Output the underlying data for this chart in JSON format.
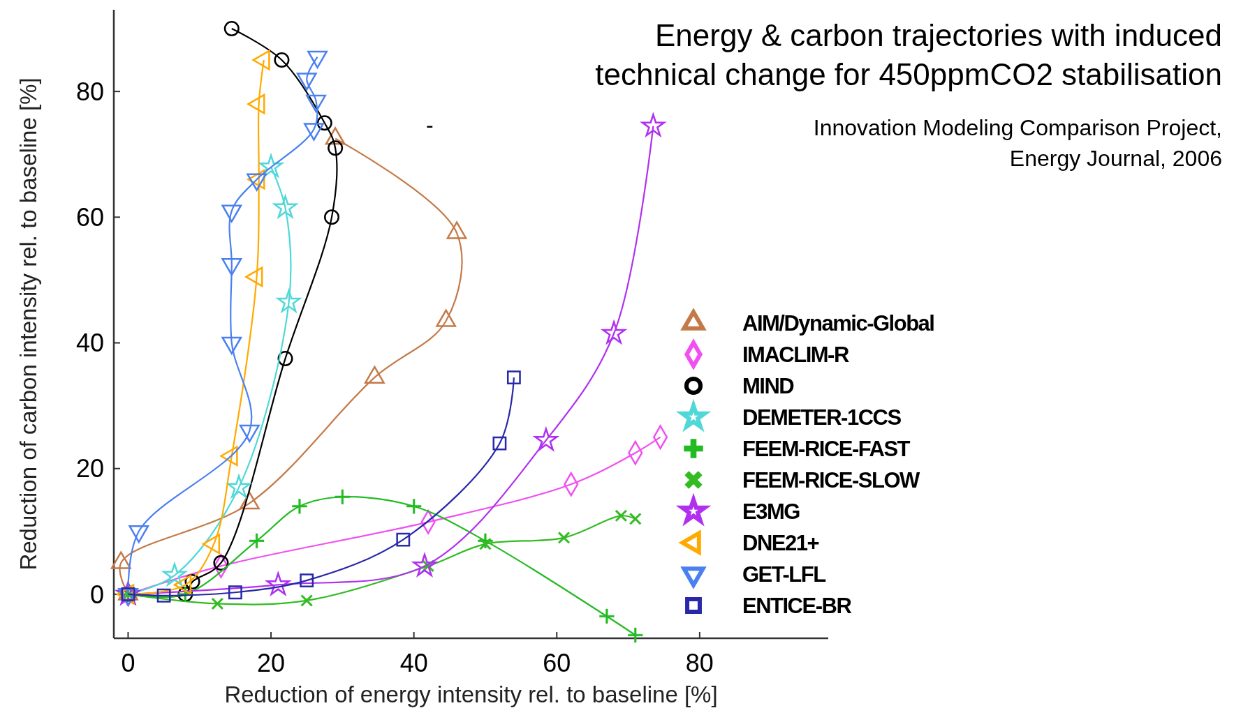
{
  "chart_data": {
    "type": "line",
    "title": "Energy & carbon trajectories with induced\ntechnical change for 450ppmCO2 stabilisation",
    "annotations": [
      "-",
      "Innovation Modeling Comparison Project,",
      "Energy Journal, 2006"
    ],
    "xlabel": "Reduction of energy intensity rel. to baseline [%]",
    "ylabel": "Reduction of carbon intensity rel. to baseline [%]",
    "xlim": [
      -2,
      98
    ],
    "ylim": [
      -7,
      93
    ],
    "xticks": [
      0,
      20,
      40,
      60,
      80
    ],
    "yticks": [
      0,
      20,
      40,
      60,
      80
    ],
    "grid": false,
    "legend": "right",
    "line_style": "solid",
    "series": [
      {
        "name": "AIM/Dynamic-Global",
        "color": "#c47a48",
        "marker": "triangle",
        "x": [
          0,
          -1,
          17,
          34.5,
          44.5,
          46,
          29
        ],
        "values": [
          0,
          5,
          14.5,
          34.5,
          43.5,
          57.5,
          72.5
        ]
      },
      {
        "name": "IMACLIM-R",
        "color": "#f050f0",
        "marker": "diamond",
        "x": [
          0,
          13,
          42,
          62,
          71,
          74.5
        ],
        "values": [
          0,
          4.5,
          11.5,
          17.5,
          22.5,
          25
        ]
      },
      {
        "name": "MIND",
        "color": "#000000",
        "marker": "circle",
        "x": [
          0,
          8,
          9,
          13,
          22,
          28.5,
          29,
          27.5,
          21.5,
          14.5
        ],
        "values": [
          0,
          0,
          2,
          5,
          37.5,
          60,
          71,
          75,
          85,
          90
        ]
      },
      {
        "name": "DEMETER-1CCS",
        "color": "#50d8d8",
        "marker": "star",
        "x": [
          0,
          6.5,
          15.5,
          22.5,
          22,
          20
        ],
        "values": [
          0,
          3,
          17,
          46.5,
          61.5,
          68
        ]
      },
      {
        "name": "FEEM-RICE-FAST",
        "color": "#22bb22",
        "marker": "cross",
        "x": [
          0,
          8,
          18,
          24,
          30,
          40,
          50,
          67,
          71
        ],
        "values": [
          0,
          0,
          8.5,
          14,
          15.5,
          14,
          8.5,
          -3.5,
          -6.5
        ]
      },
      {
        "name": "FEEM-RICE-SLOW",
        "color": "#33bb22",
        "marker": "x",
        "x": [
          0,
          12.5,
          25,
          42,
          50,
          61,
          69,
          71
        ],
        "values": [
          0,
          -1.5,
          -1,
          4.5,
          8,
          9,
          12.5,
          12
        ]
      },
      {
        "name": "E3MG",
        "color": "#b030f0",
        "marker": "star",
        "x": [
          0,
          21,
          41.5,
          58.5,
          68,
          73.5
        ],
        "values": [
          0,
          1.5,
          4.5,
          24.5,
          41.5,
          74.5
        ]
      },
      {
        "name": "DNE21+",
        "color": "#ffaa00",
        "marker": "triangle-left",
        "x": [
          0,
          8,
          12,
          14.5,
          18,
          18.3,
          18.3,
          19
        ],
        "values": [
          0,
          1.5,
          8,
          22,
          50.5,
          66,
          78,
          85
        ]
      },
      {
        "name": "GET-LFL",
        "color": "#4a80f0",
        "marker": "triangle-down",
        "x": [
          0,
          1.5,
          17,
          14.5,
          14.5,
          14.5,
          18,
          26,
          26.3,
          25,
          26.5
        ],
        "values": [
          0,
          10,
          26,
          40,
          52.5,
          61,
          66,
          74,
          78.5,
          82,
          85.5
        ]
      },
      {
        "name": "ENTICE-BR",
        "color": "#2828a8",
        "marker": "square",
        "x": [
          0,
          5,
          15,
          25,
          38.5,
          52,
          54
        ],
        "values": [
          0,
          -0.2,
          0.3,
          2.2,
          8.7,
          24,
          34.5
        ]
      }
    ]
  }
}
